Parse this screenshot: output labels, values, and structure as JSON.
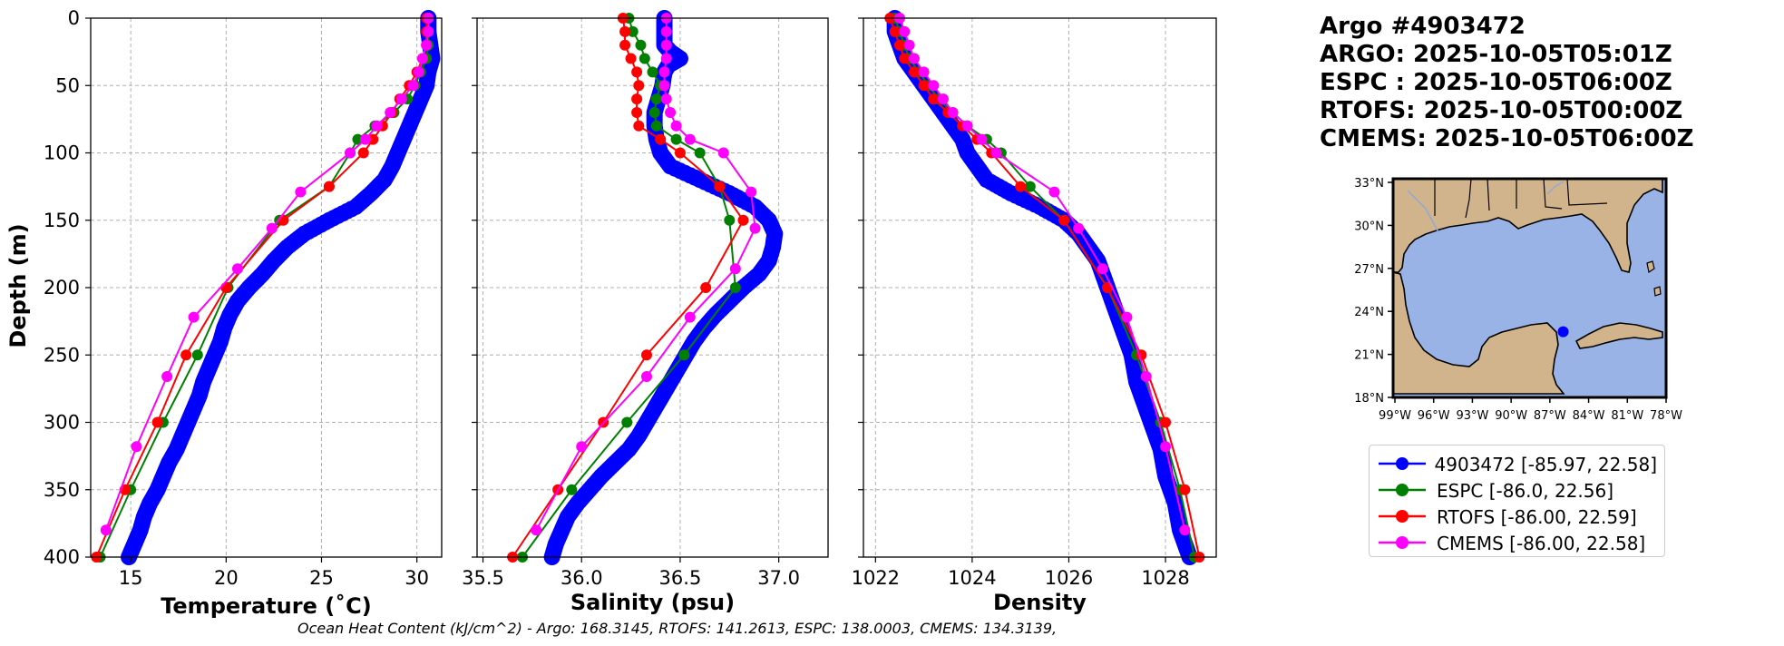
{
  "header": {
    "title": "Argo #4903472",
    "argo_time": "ARGO: 2025-10-05T05:01Z",
    "espc_time": "ESPC : 2025-10-05T06:00Z",
    "rtofs_time": "RTOFS: 2025-10-05T00:00Z",
    "cmems_time": "CMEMS: 2025-10-05T06:00Z"
  },
  "footer": {
    "ohc_text": "Ocean Heat Content (kJ/cm^2) - Argo: 168.3145,  RTOFS: 141.2613,  ESPC: 138.0003,  CMEMS: 134.3139,"
  },
  "legend": [
    {
      "label": "4903472 [-85.97, 22.58]",
      "color": "#0000ff"
    },
    {
      "label": "ESPC [-86.0, 22.56]",
      "color": "#008000"
    },
    {
      "label": "RTOFS [-86.00, 22.59]",
      "color": "#ff0000"
    },
    {
      "label": "CMEMS [-86.00, 22.58]",
      "color": "#ff00ff"
    }
  ],
  "colors": {
    "argo": "#0000ff",
    "espc": "#008000",
    "rtofs": "#ff0000",
    "cmems": "#ff00ff",
    "land": "#d2b48c",
    "ocean": "#99b3e6"
  },
  "chart_data": [
    {
      "type": "line",
      "xlabel": "Temperature (˚C)",
      "ylabel": "Depth (m)",
      "xlim": [
        12.9,
        31.3
      ],
      "ylim": [
        400,
        0
      ],
      "xticks": [
        15,
        20,
        25,
        30
      ],
      "yticks": [
        0,
        50,
        100,
        150,
        200,
        250,
        300,
        350,
        400
      ],
      "grid": true,
      "series": [
        {
          "name": "4903472",
          "style": "argo",
          "depth": [
            0,
            10,
            20,
            30,
            40,
            50,
            60,
            70,
            80,
            90,
            100,
            110,
            120,
            130,
            140,
            150,
            160,
            170,
            180,
            190,
            200,
            210,
            220,
            230,
            240,
            250,
            260,
            270,
            280,
            290,
            300,
            310,
            320,
            330,
            340,
            350,
            360,
            370,
            380,
            390,
            400
          ],
          "values": [
            30.6,
            30.6,
            30.7,
            30.8,
            30.6,
            30.5,
            30.2,
            29.9,
            29.6,
            29.3,
            29.0,
            28.7,
            28.3,
            27.6,
            26.8,
            25.4,
            24.1,
            23.2,
            22.5,
            21.9,
            21.2,
            20.6,
            20.2,
            19.9,
            19.7,
            19.4,
            19.1,
            18.8,
            18.6,
            18.3,
            18.0,
            17.7,
            17.4,
            17.0,
            16.7,
            16.4,
            16.0,
            15.7,
            15.5,
            15.2,
            14.9
          ]
        },
        {
          "name": "ESPC",
          "style": "espc",
          "depth": [
            0,
            10,
            20,
            30,
            40,
            50,
            60,
            70,
            80,
            90,
            100,
            125,
            150,
            200,
            250,
            300,
            350,
            400
          ],
          "values": [
            30.6,
            30.6,
            30.6,
            30.5,
            30.2,
            29.9,
            29.5,
            28.8,
            27.8,
            26.9,
            26.5,
            25.4,
            22.8,
            20.1,
            18.5,
            16.7,
            15.0,
            13.4
          ]
        },
        {
          "name": "RTOFS",
          "style": "rtofs",
          "depth": [
            0,
            10,
            20,
            30,
            40,
            50,
            60,
            70,
            80,
            90,
            100,
            125,
            150,
            200,
            250,
            300,
            350,
            400
          ],
          "values": [
            30.5,
            30.5,
            30.5,
            30.3,
            30.0,
            29.6,
            29.1,
            28.7,
            28.2,
            27.7,
            27.2,
            25.4,
            23.0,
            20.0,
            17.9,
            16.4,
            14.7,
            13.2
          ]
        },
        {
          "name": "CMEMS",
          "style": "cmems",
          "depth": [
            0,
            10,
            20,
            30,
            40,
            50,
            60,
            70,
            80,
            90,
            100,
            129,
            156,
            186,
            222,
            266,
            318,
            380
          ],
          "values": [
            30.6,
            30.6,
            30.5,
            30.3,
            30.1,
            29.8,
            29.2,
            28.6,
            27.9,
            27.3,
            26.5,
            23.9,
            22.4,
            20.6,
            18.3,
            16.9,
            15.3,
            13.7
          ]
        }
      ]
    },
    {
      "type": "line",
      "xlabel": "Salinity (psu)",
      "ylabel": "",
      "xlim": [
        35.47,
        37.25
      ],
      "ylim": [
        400,
        0
      ],
      "xticks": [
        35.5,
        36.0,
        36.5,
        37.0
      ],
      "yticks": [
        0,
        50,
        100,
        150,
        200,
        250,
        300,
        350,
        400
      ],
      "grid": true,
      "series": [
        {
          "name": "4903472",
          "style": "argo",
          "depth": [
            0,
            10,
            20,
            25,
            30,
            35,
            40,
            50,
            60,
            70,
            80,
            90,
            100,
            110,
            120,
            130,
            140,
            150,
            160,
            170,
            180,
            190,
            200,
            210,
            220,
            230,
            240,
            250,
            260,
            270,
            280,
            290,
            300,
            310,
            320,
            330,
            340,
            350,
            360,
            370,
            380,
            390,
            400
          ],
          "values": [
            36.42,
            36.42,
            36.42,
            36.45,
            36.5,
            36.44,
            36.42,
            36.41,
            36.39,
            36.37,
            36.37,
            36.38,
            36.4,
            36.45,
            36.6,
            36.75,
            36.88,
            36.95,
            36.98,
            36.97,
            36.95,
            36.9,
            36.82,
            36.75,
            36.68,
            36.62,
            36.57,
            36.53,
            36.49,
            36.45,
            36.41,
            36.37,
            36.33,
            36.29,
            36.24,
            36.17,
            36.1,
            36.04,
            35.98,
            35.93,
            35.9,
            35.87,
            35.85
          ]
        },
        {
          "name": "ESPC",
          "style": "espc",
          "depth": [
            0,
            10,
            20,
            30,
            40,
            50,
            60,
            70,
            80,
            90,
            100,
            125,
            150,
            200,
            250,
            300,
            350,
            400
          ],
          "values": [
            36.24,
            36.26,
            36.3,
            36.32,
            36.36,
            36.4,
            36.38,
            36.37,
            36.38,
            36.48,
            36.6,
            36.7,
            36.75,
            36.78,
            36.52,
            36.23,
            35.95,
            35.7
          ]
        },
        {
          "name": "RTOFS",
          "style": "rtofs",
          "depth": [
            0,
            10,
            20,
            30,
            40,
            50,
            60,
            70,
            80,
            90,
            100,
            125,
            150,
            200,
            250,
            300,
            350,
            400
          ],
          "values": [
            36.21,
            36.22,
            36.22,
            36.25,
            36.28,
            36.29,
            36.28,
            36.28,
            36.29,
            36.4,
            36.5,
            36.7,
            36.82,
            36.63,
            36.33,
            36.11,
            35.88,
            35.65
          ]
        },
        {
          "name": "CMEMS",
          "style": "cmems",
          "depth": [
            0,
            10,
            20,
            30,
            40,
            50,
            60,
            70,
            80,
            90,
            100,
            129,
            156,
            186,
            222,
            266,
            318,
            380
          ],
          "values": [
            36.43,
            36.43,
            36.43,
            36.43,
            36.42,
            36.42,
            36.43,
            36.45,
            36.48,
            36.55,
            36.72,
            36.86,
            36.88,
            36.78,
            36.55,
            36.33,
            36.0,
            35.77
          ]
        }
      ]
    },
    {
      "type": "line",
      "xlabel": "Density",
      "ylabel": "",
      "xlim": [
        1021.75,
        1029.05
      ],
      "ylim": [
        400,
        0
      ],
      "xticks": [
        1022,
        1024,
        1026,
        1028
      ],
      "yticks": [
        0,
        50,
        100,
        150,
        200,
        250,
        300,
        350,
        400
      ],
      "grid": true,
      "series": [
        {
          "name": "4903472",
          "style": "argo",
          "depth": [
            0,
            10,
            20,
            30,
            40,
            50,
            60,
            70,
            80,
            90,
            100,
            110,
            120,
            130,
            140,
            150,
            160,
            170,
            180,
            190,
            200,
            210,
            220,
            230,
            240,
            250,
            260,
            270,
            280,
            290,
            300,
            310,
            320,
            330,
            340,
            350,
            360,
            370,
            380,
            390,
            400
          ],
          "values": [
            1022.4,
            1022.4,
            1022.5,
            1022.6,
            1022.8,
            1023.0,
            1023.2,
            1023.4,
            1023.6,
            1023.8,
            1023.9,
            1024.1,
            1024.3,
            1024.8,
            1025.4,
            1025.9,
            1026.2,
            1026.4,
            1026.6,
            1026.7,
            1026.8,
            1026.9,
            1027.0,
            1027.1,
            1027.2,
            1027.3,
            1027.35,
            1027.4,
            1027.5,
            1027.6,
            1027.7,
            1027.8,
            1027.9,
            1027.95,
            1028.0,
            1028.1,
            1028.2,
            1028.25,
            1028.3,
            1028.4,
            1028.5
          ]
        },
        {
          "name": "ESPC",
          "style": "espc",
          "depth": [
            0,
            10,
            20,
            30,
            40,
            50,
            60,
            70,
            80,
            90,
            100,
            125,
            150,
            200,
            250,
            300,
            350,
            400
          ],
          "values": [
            1022.4,
            1022.5,
            1022.6,
            1022.7,
            1022.9,
            1023.1,
            1023.3,
            1023.6,
            1023.9,
            1024.3,
            1024.6,
            1025.2,
            1025.9,
            1026.8,
            1027.4,
            1027.9,
            1028.3,
            1028.6
          ]
        },
        {
          "name": "RTOFS",
          "style": "rtofs",
          "depth": [
            0,
            10,
            20,
            30,
            40,
            50,
            60,
            70,
            80,
            90,
            100,
            125,
            150,
            200,
            250,
            300,
            350,
            400
          ],
          "values": [
            1022.3,
            1022.4,
            1022.5,
            1022.6,
            1022.8,
            1023.0,
            1023.2,
            1023.5,
            1023.8,
            1024.1,
            1024.4,
            1025.0,
            1025.9,
            1026.8,
            1027.5,
            1028.0,
            1028.4,
            1028.7
          ]
        },
        {
          "name": "CMEMS",
          "style": "cmems",
          "depth": [
            0,
            10,
            20,
            30,
            40,
            50,
            60,
            70,
            80,
            90,
            100,
            129,
            156,
            186,
            222,
            266,
            318,
            380
          ],
          "values": [
            1022.5,
            1022.6,
            1022.7,
            1022.8,
            1023.0,
            1023.2,
            1023.4,
            1023.6,
            1023.9,
            1024.2,
            1024.5,
            1025.7,
            1026.2,
            1026.7,
            1027.2,
            1027.6,
            1028.0,
            1028.4
          ]
        }
      ]
    }
  ],
  "map": {
    "lon_ticks": [
      "99°W",
      "96°W",
      "93°W",
      "90°W",
      "87°W",
      "84°W",
      "81°W",
      "78°W"
    ],
    "lat_ticks": [
      "33°N",
      "30°N",
      "27°N",
      "24°N",
      "21°N",
      "18°N"
    ],
    "lon_range": [
      -99,
      -78
    ],
    "lat_range": [
      18,
      33
    ],
    "float_position": {
      "lon": -85.97,
      "lat": 22.58
    }
  }
}
